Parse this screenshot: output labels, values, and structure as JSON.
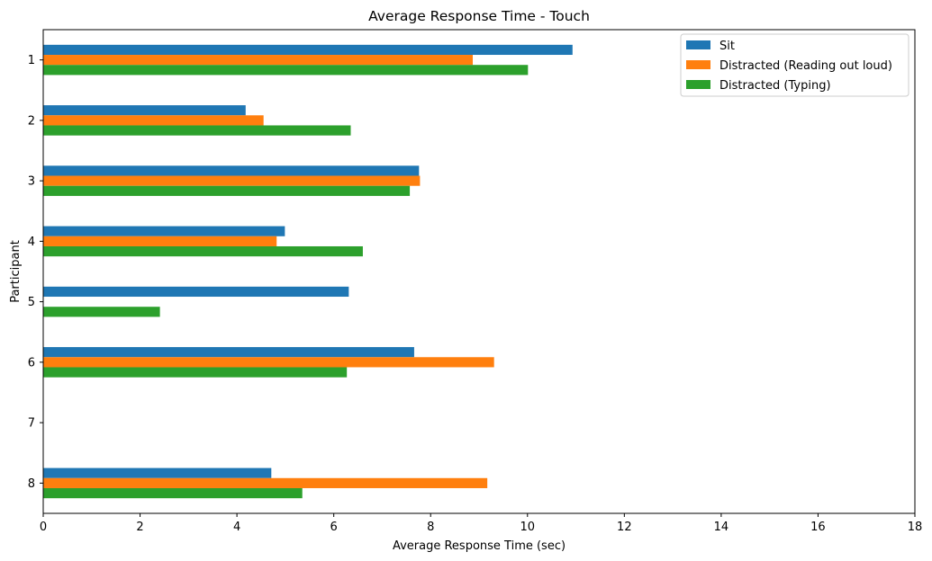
{
  "chart_data": {
    "type": "bar",
    "orientation": "horizontal",
    "title": "Average Response Time - Touch",
    "xlabel": "Average Response Time (sec)",
    "ylabel": "Participant",
    "xlim": [
      0,
      18
    ],
    "x_ticks": [
      0,
      2,
      4,
      6,
      8,
      10,
      12,
      14,
      16,
      18
    ],
    "categories": [
      "1",
      "2",
      "3",
      "4",
      "5",
      "6",
      "7",
      "8"
    ],
    "series": [
      {
        "name": "Sit",
        "color": "#1f77b4",
        "values": [
          10.93,
          4.18,
          7.76,
          4.99,
          6.31,
          7.66,
          null,
          4.71
        ]
      },
      {
        "name": "Distracted (Reading out loud)",
        "color": "#ff7f0e",
        "values": [
          8.87,
          4.55,
          7.78,
          4.82,
          null,
          9.31,
          null,
          9.17
        ]
      },
      {
        "name": "Distracted (Typing)",
        "color": "#2ca02c",
        "values": [
          10.01,
          6.35,
          7.57,
          6.6,
          2.41,
          6.27,
          null,
          5.35
        ]
      }
    ],
    "legend": "top-right",
    "grid": false
  }
}
